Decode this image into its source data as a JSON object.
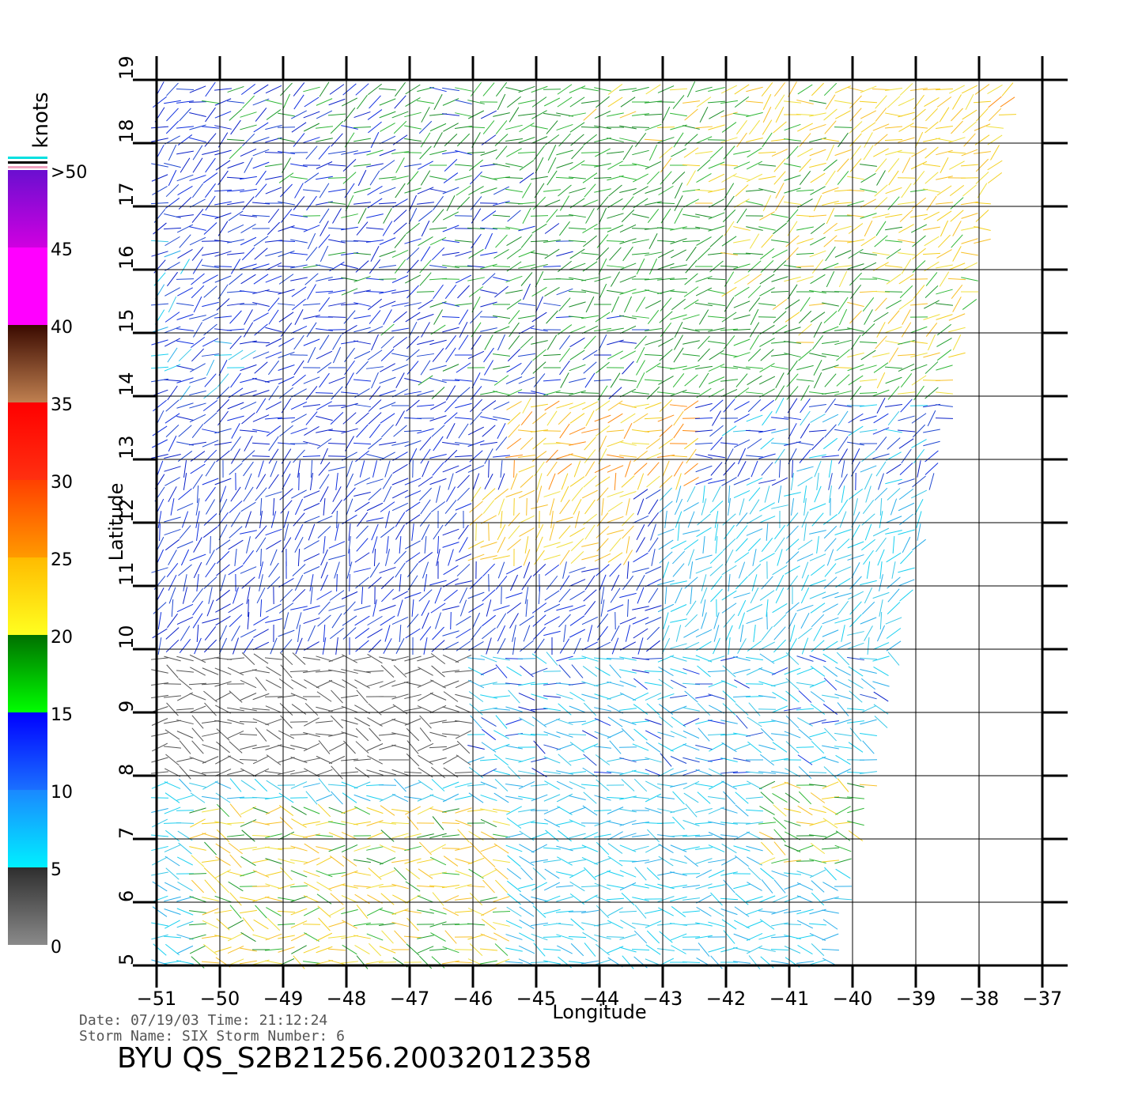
{
  "map": {
    "lon_range": [
      -51,
      -37
    ],
    "lat_range": [
      5,
      19
    ],
    "lon_ticks": [
      "-51",
      "-50",
      "-49",
      "-48",
      "-47",
      "-46",
      "-45",
      "-44",
      "-43",
      "-42",
      "-41",
      "-40",
      "-39",
      "-38",
      "-37"
    ],
    "lat_ticks": [
      "5",
      "6",
      "7",
      "8",
      "9",
      "10",
      "11",
      "12",
      "13",
      "14",
      "15",
      "16",
      "17",
      "18",
      "19"
    ],
    "xlabel": "Longitude",
    "ylabel": "Latitude",
    "grid": true
  },
  "legend": {
    "unit": "knots",
    "labels": [
      ">50",
      "45",
      "40",
      "35",
      "30",
      "25",
      "20",
      "15",
      "10",
      "5",
      "0"
    ],
    "bands": [
      {
        "from": 0,
        "to": 5,
        "top": "#2e2e2e",
        "bottom": "#8a8a8a"
      },
      {
        "from": 5,
        "to": 10,
        "top": "#1a88ff",
        "bottom": "#00f0ff"
      },
      {
        "from": 10,
        "to": 15,
        "top": "#0000ff",
        "bottom": "#1a70ff"
      },
      {
        "from": 15,
        "to": 20,
        "top": "#007000",
        "bottom": "#00ff00"
      },
      {
        "from": 20,
        "to": 25,
        "top": "#ffbb00",
        "bottom": "#ffff20"
      },
      {
        "from": 25,
        "to": 30,
        "top": "#ff4000",
        "bottom": "#ff9a00"
      },
      {
        "from": 30,
        "to": 35,
        "top": "#ff0000",
        "bottom": "#ff3010"
      },
      {
        "from": 35,
        "to": 40,
        "top": "#3a0a00",
        "bottom": "#c08050"
      },
      {
        "from": 40,
        "to": 45,
        "top": "#ff00ff",
        "bottom": "#ff00ff"
      },
      {
        "from": 45,
        "to": 50,
        "top": "#6a0fd0",
        "bottom": "#d000e0"
      }
    ]
  },
  "info": {
    "line1": "Date: 07/19/03   Time: 21:12:24",
    "line2": "Storm Name: SIX   Storm Number: 6",
    "title": "BYU QS_S2B21256.20032012358"
  }
}
